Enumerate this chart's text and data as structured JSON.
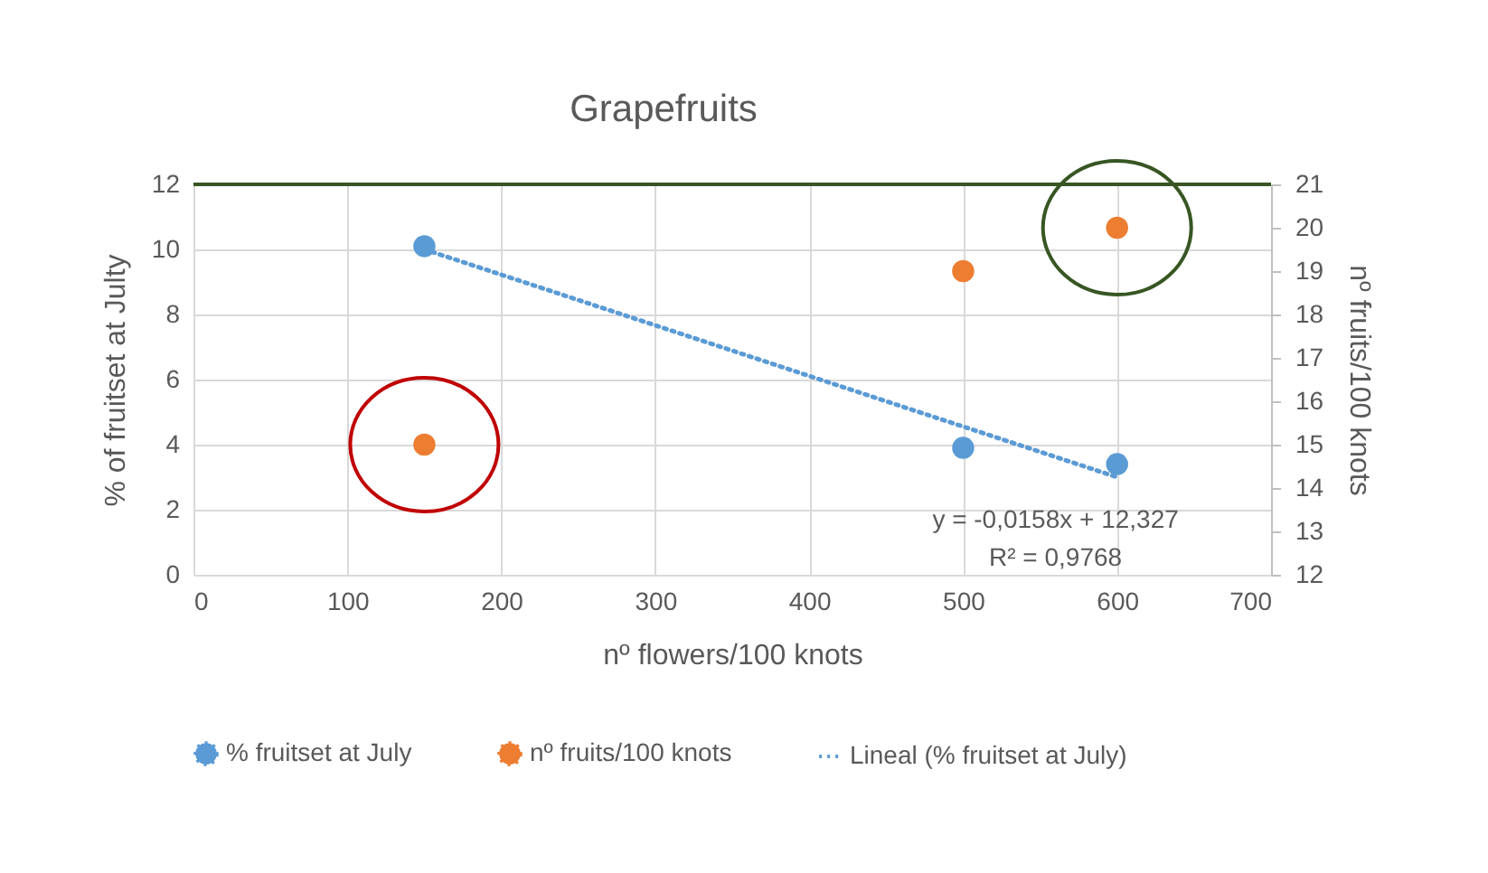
{
  "chart_data": {
    "type": "scatter",
    "title": "Grapefruits",
    "xlabel": "nº flowers/100 knots",
    "ylabel": "% of fruitset at Julty",
    "y2label": "nº fruits/100 knots",
    "xlim": [
      0,
      700
    ],
    "xticks": [
      0,
      100,
      200,
      300,
      400,
      500,
      600,
      700
    ],
    "ylim": [
      0,
      12
    ],
    "yticks": [
      0,
      2,
      4,
      6,
      8,
      10,
      12
    ],
    "y2lim": [
      12,
      21
    ],
    "y2ticks": [
      12,
      13,
      14,
      15,
      16,
      17,
      18,
      19,
      20,
      21
    ],
    "series": [
      {
        "name": "% fruitset at July",
        "color": "#5b9bd5",
        "type": "scatter",
        "marker": "circle",
        "x": [
          150,
          500,
          600
        ],
        "values": [
          10.1,
          3.9,
          3.4
        ]
      },
      {
        "name": "nº fruits/100 knots",
        "color": "#ed7d31",
        "type": "scatter",
        "marker": "circle",
        "axis": "y2",
        "x": [
          150,
          500,
          600
        ],
        "values": [
          15,
          19,
          20
        ]
      },
      {
        "name": "Lineal (% fruitset at July)",
        "color": "#5b9bd5",
        "type": "line",
        "marker": "none",
        "line_style": "dotted",
        "x": [
          150,
          600
        ],
        "values": [
          10.0,
          3.0
        ]
      }
    ],
    "ref_lines": [
      {
        "axis": "y",
        "value": 12,
        "color": "#375623"
      }
    ],
    "annotations": [
      "y = -0,0158x + 12,327",
      "R² = 0,9768"
    ],
    "grid": true,
    "legend": "bottom"
  }
}
